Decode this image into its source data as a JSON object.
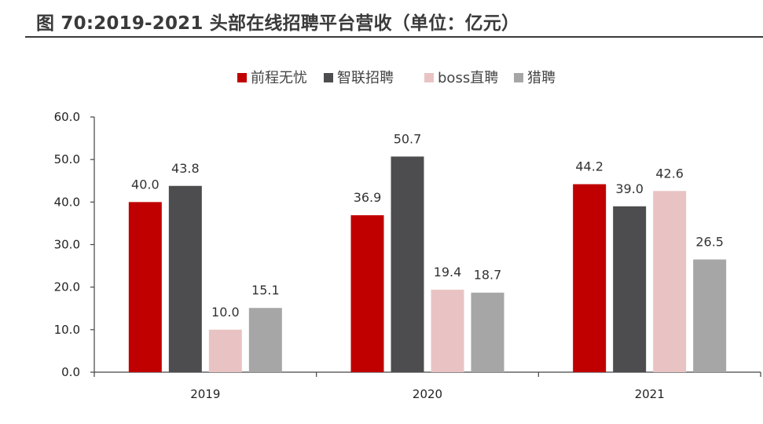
{
  "title": "图 70:2019-2021 头部在线招聘平台营收（单位：亿元）",
  "chart_data": {
    "type": "bar",
    "title": "图 70:2019-2021 头部在线招聘平台营收（单位：亿元）",
    "categories": [
      "2019",
      "2020",
      "2021"
    ],
    "series": [
      {
        "name": "前程无忧",
        "values": [
          40.0,
          36.9,
          44.2
        ],
        "color": "#c00000"
      },
      {
        "name": "智联招聘",
        "values": [
          43.8,
          50.7,
          39.0
        ],
        "color": "#4d4d4f"
      },
      {
        "name": "boss直聘",
        "values": [
          10.0,
          19.4,
          42.6
        ],
        "color": "#e9c3c3"
      },
      {
        "name": "猎聘",
        "values": [
          15.1,
          18.7,
          26.5
        ],
        "color": "#a6a6a6"
      }
    ],
    "ylim": [
      0,
      60
    ],
    "yticks": [
      "0.0",
      "10.0",
      "20.0",
      "30.0",
      "40.0",
      "50.0",
      "60.0"
    ],
    "xlabel": "",
    "ylabel": "",
    "legend_position": "top-center",
    "grid": false
  }
}
